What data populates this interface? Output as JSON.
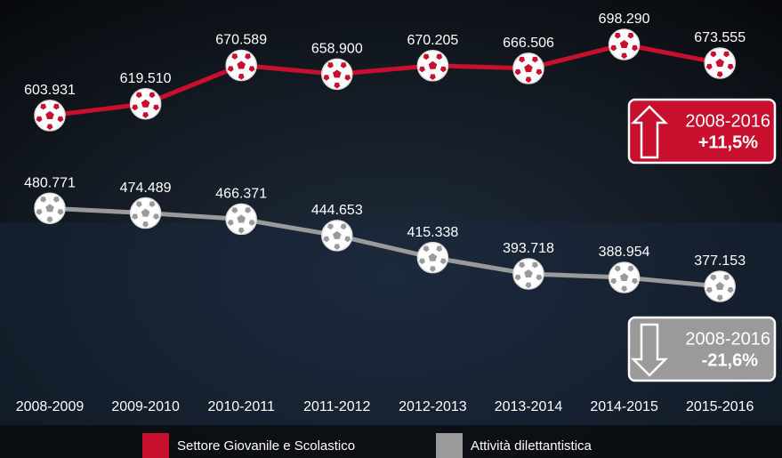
{
  "chart_data": {
    "type": "line",
    "categories": [
      "2008-2009",
      "2009-2010",
      "2010-2011",
      "2011-2012",
      "2012-2013",
      "2013-2014",
      "2014-2015",
      "2015-2016"
    ],
    "series": [
      {
        "name": "Settore Giovanile e Scolastico",
        "color": "#c8102e",
        "values": [
          603931,
          619510,
          670589,
          658900,
          670205,
          666506,
          698290,
          673555
        ],
        "value_labels": [
          "603.931",
          "619.510",
          "670.589",
          "658.900",
          "670.205",
          "666.506",
          "698.290",
          "673.555"
        ]
      },
      {
        "name": "Attività dilettantistica",
        "color": "#9a9a9a",
        "values": [
          480771,
          474489,
          466371,
          444653,
          415338,
          393718,
          388954,
          377153
        ],
        "value_labels": [
          "480.771",
          "474.489",
          "466.371",
          "444.653",
          "415.338",
          "393.718",
          "388.954",
          "377.153"
        ]
      }
    ],
    "ylim": [
      350000,
      720000
    ],
    "annotations": [
      {
        "period": "2008-2016",
        "change": "+11,5%"
      },
      {
        "period": "2008-2016",
        "change": "-21,6%"
      }
    ]
  }
}
